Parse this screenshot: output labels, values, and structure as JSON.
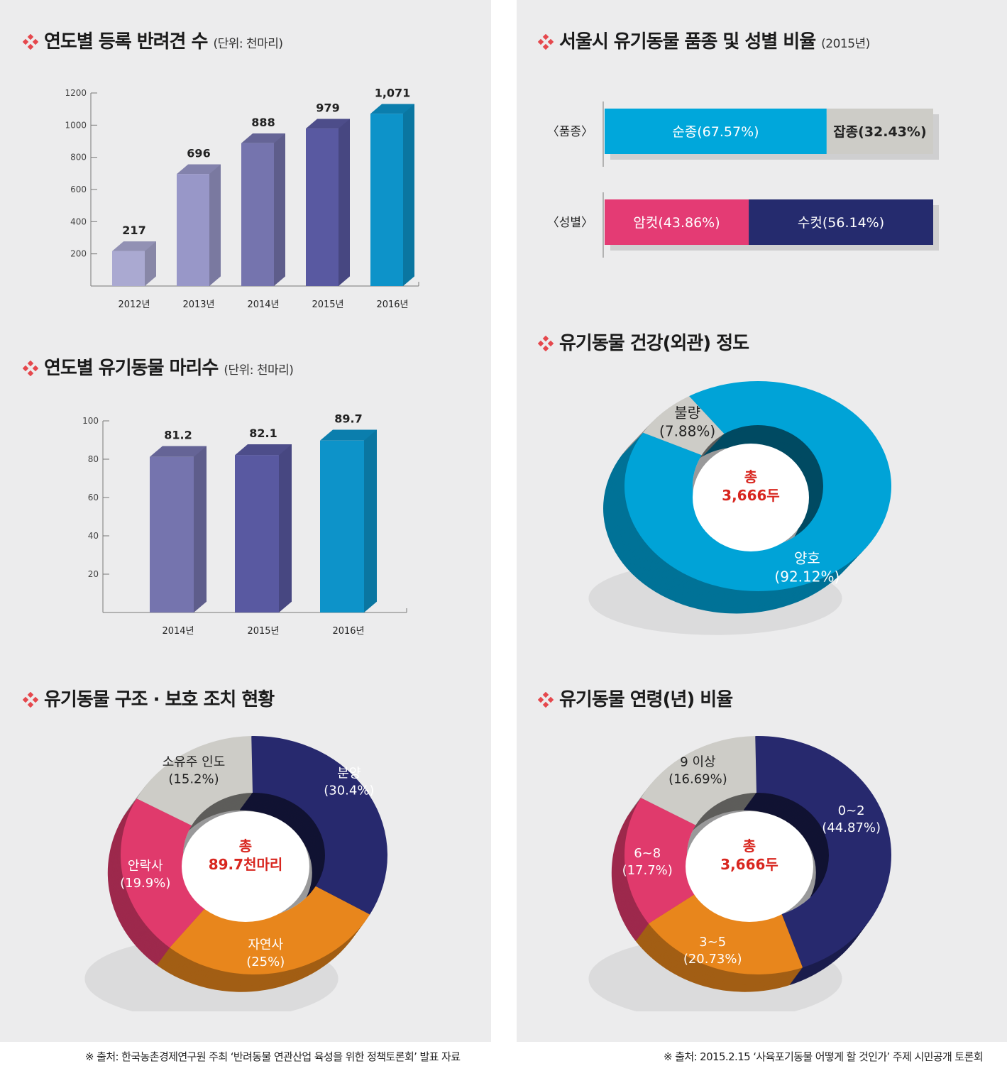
{
  "sections": {
    "reg": {
      "title": "연도별 등록 반려견 수",
      "unit": "(단위: 천마리)"
    },
    "abandoned": {
      "title": "연도별 유기동물 마리수",
      "unit": "(단위: 천마리)"
    },
    "rescue": {
      "title": "유기동물 구조 · 보호 조치 현황"
    },
    "seoul": {
      "title": "서울시 유기동물 품종 및 성별 비율",
      "unit": "(2015년)"
    },
    "health": {
      "title": "유기동물 건강(외관) 정도"
    },
    "age": {
      "title": "유기동물 연령(년) 비율"
    }
  },
  "sources": {
    "left": "※ 출처: 한국농촌경제연구원 주최 ‘반려동물 연관산업 육성을 위한 정책토론회’ 발표 자료",
    "right": "※ 출처: 2015.2.15 ‘사육포기동물 어떻게 할 것인가’ 주제 시민공개 토론회"
  },
  "colors": {
    "bullet": "#e5484d",
    "center_text": "#d8261f",
    "panel_bg": "#ececed"
  },
  "chart_data": [
    {
      "id": "reg",
      "type": "bar",
      "categories": [
        "2012년",
        "2013년",
        "2014년",
        "2015년",
        "2016년"
      ],
      "values": [
        217,
        696,
        888,
        979,
        1071
      ],
      "labels": [
        "217",
        "696",
        "888",
        "979",
        "1,071"
      ],
      "ylim": [
        0,
        1200
      ],
      "yticks": [
        200,
        400,
        600,
        800,
        1000,
        1200
      ],
      "colors": [
        "#aaa9d1",
        "#9897c8",
        "#7574ae",
        "#5959a1",
        "#0d93c9"
      ]
    },
    {
      "id": "abandoned",
      "type": "bar",
      "categories": [
        "2014년",
        "2015년",
        "2016년"
      ],
      "values": [
        81.2,
        82.1,
        89.7
      ],
      "labels": [
        "81.2",
        "82.1",
        "89.7"
      ],
      "ylim": [
        0,
        100
      ],
      "yticks": [
        20,
        40,
        60,
        80,
        100
      ],
      "colors": [
        "#7574ae",
        "#5959a1",
        "#0d93c9"
      ]
    },
    {
      "id": "seoul",
      "type": "bar",
      "rows": [
        {
          "label": "〈품종〉",
          "segments": [
            {
              "name": "순종",
              "value": 67.57,
              "text": "순종(67.57%)",
              "color": "#00a7db",
              "text_color": "#ffffff"
            },
            {
              "name": "잡종",
              "value": 32.43,
              "text": "잡종(32.43%)",
              "color": "#cdccc7",
              "text_color": "#222222"
            }
          ]
        },
        {
          "label": "〈성별〉",
          "segments": [
            {
              "name": "암컷",
              "value": 43.86,
              "text": "암컷(43.86%)",
              "color": "#e43b74",
              "text_color": "#ffffff"
            },
            {
              "name": "수컷",
              "value": 56.14,
              "text": "수컷(56.14%)",
              "color": "#252b6e",
              "text_color": "#ffffff"
            }
          ]
        }
      ]
    },
    {
      "id": "health",
      "type": "pie",
      "center": [
        "총",
        "3,666두"
      ],
      "slices": [
        {
          "name": "양호",
          "value": 92.12,
          "label": [
            "양호",
            "(92.12%)"
          ],
          "color": "#00a3d7",
          "text_color": "#ffffff"
        },
        {
          "name": "불량",
          "value": 7.88,
          "label": [
            "불량",
            "(7.88%)"
          ],
          "color": "#cdccc7",
          "text_color": "#222222"
        }
      ]
    },
    {
      "id": "rescue",
      "type": "pie",
      "center": [
        "총",
        "89.7천마리"
      ],
      "slices": [
        {
          "name": "분양",
          "value": 30.4,
          "label": [
            "분양",
            "(30.4%)"
          ],
          "color": "#27296e",
          "text_color": "#ffffff"
        },
        {
          "name": "자연사",
          "value": 25,
          "label": [
            "자연사",
            "(25%)"
          ],
          "color": "#e8861c",
          "text_color": "#ffffff"
        },
        {
          "name": "안락사",
          "value": 19.9,
          "label": [
            "안락사",
            "(19.9%)"
          ],
          "color": "#e03a6c",
          "text_color": "#ffffff"
        },
        {
          "name": "소유주 인도",
          "value": 15.2,
          "label": [
            "소유주 인도",
            "(15.2%)"
          ],
          "color": "#cdccc7",
          "text_color": "#222222"
        }
      ]
    },
    {
      "id": "age",
      "type": "pie",
      "center": [
        "총",
        "3,666두"
      ],
      "slices": [
        {
          "name": "0~2",
          "value": 44.87,
          "label": [
            "0~2",
            "(44.87%)"
          ],
          "color": "#27296e",
          "text_color": "#ffffff"
        },
        {
          "name": "3~5",
          "value": 20.73,
          "label": [
            "3~5",
            "(20.73%)"
          ],
          "color": "#e8861c",
          "text_color": "#ffffff"
        },
        {
          "name": "6~8",
          "value": 17.7,
          "label": [
            "6~8",
            "(17.7%)"
          ],
          "color": "#e03a6c",
          "text_color": "#ffffff"
        },
        {
          "name": "9 이상",
          "value": 16.69,
          "label": [
            "9 이상",
            "(16.69%)"
          ],
          "color": "#cdccc7",
          "text_color": "#222222"
        }
      ]
    }
  ]
}
